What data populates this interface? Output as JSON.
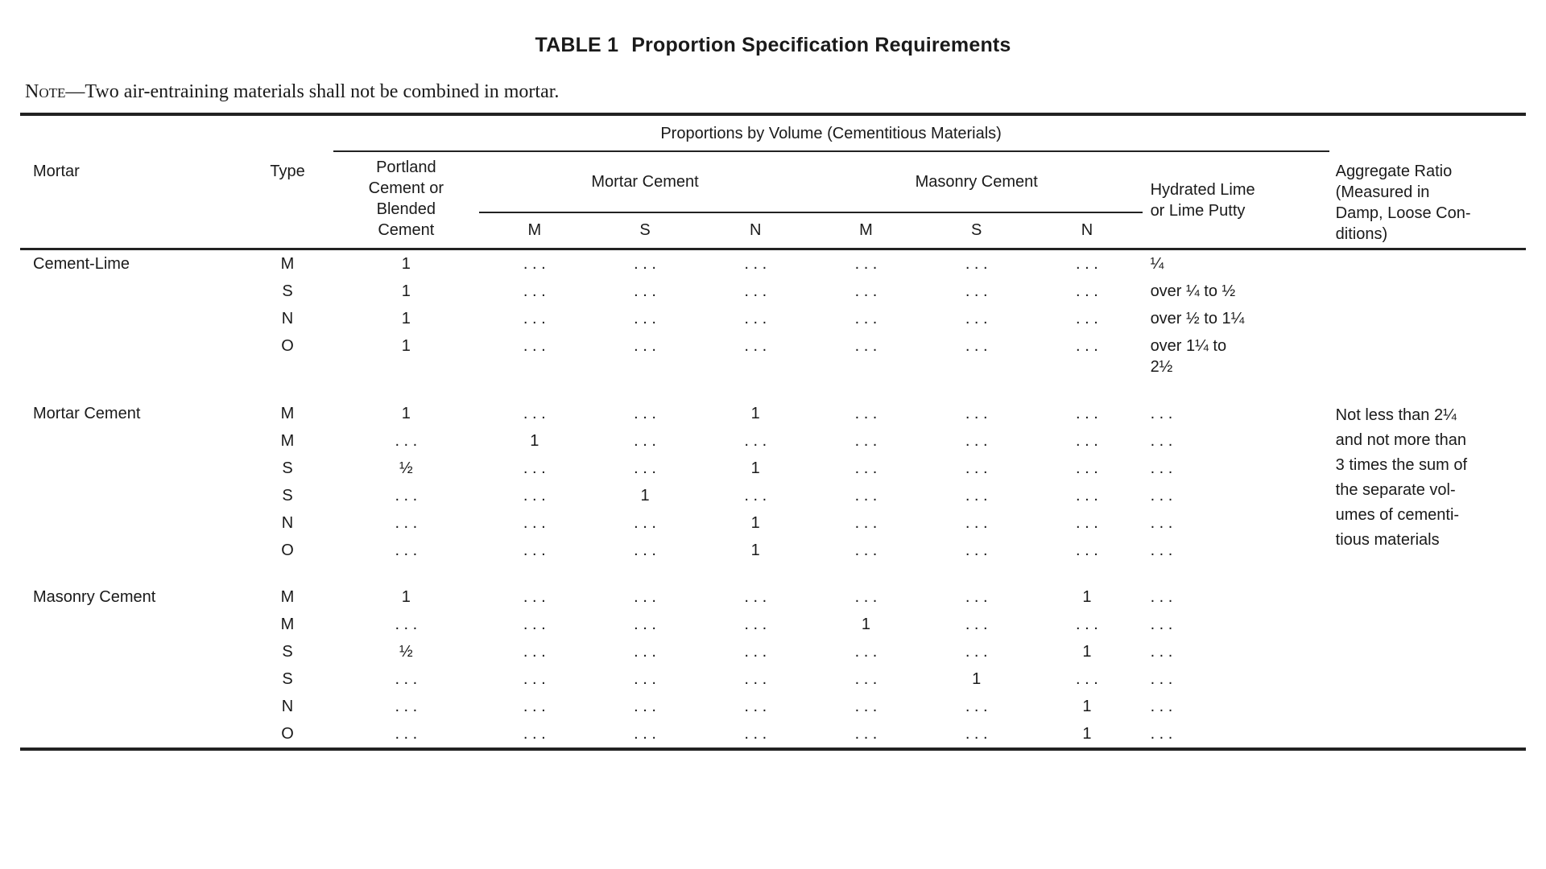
{
  "title": {
    "label": "TABLE 1",
    "text": "Proportion Specification Requirements"
  },
  "note": {
    "label": "Note",
    "text": "—Two air-entraining materials shall not be combined in mortar."
  },
  "table": {
    "headers": {
      "mortar": "Mortar",
      "type": "Type",
      "proportions_group": "Proportions by Volume (Cementitious Materials)",
      "portland": "Portland\nCement or\nBlended\nCement",
      "mortar_cement": "Mortar Cement",
      "masonry_cement": "Masonry Cement",
      "hydrated_lime": "Hydrated Lime\nor Lime Putty",
      "aggregate_ratio": "Aggregate Ratio\n(Measured in\nDamp, Loose Con-\nditions)"
    },
    "subcols": [
      "M",
      "S",
      "N",
      "M",
      "S",
      "N"
    ],
    "placeholder": ". . .",
    "body": [
      {
        "group_label": "Cement-Lime",
        "aggregate": "",
        "rows": [
          {
            "type": "M",
            "portland": "1",
            "mc": [
              ". . .",
              ". . .",
              ". . ."
            ],
            "msc": [
              ". . .",
              ". . .",
              ". . ."
            ],
            "lime": "¼"
          },
          {
            "type": "S",
            "portland": "1",
            "mc": [
              ". . .",
              ". . .",
              ". . ."
            ],
            "msc": [
              ". . .",
              ". . .",
              ". . ."
            ],
            "lime": "over ¼ to ½"
          },
          {
            "type": "N",
            "portland": "1",
            "mc": [
              ". . .",
              ". . .",
              ". . ."
            ],
            "msc": [
              ". . .",
              ". . .",
              ". . ."
            ],
            "lime": "over ½ to 1¼"
          },
          {
            "type": "O",
            "portland": "1",
            "mc": [
              ". . .",
              ". . .",
              ". . ."
            ],
            "msc": [
              ". . .",
              ". . .",
              ". . ."
            ],
            "lime": "over 1¼ to\n2½"
          }
        ]
      },
      {
        "group_label": "Mortar Cement",
        "aggregate": "Not less than 2¼\nand not more than\n3 times the sum of\nthe separate vol-\numes of cementi-\ntious materials",
        "rows": [
          {
            "type": "M",
            "portland": "1",
            "mc": [
              ". . .",
              ". . .",
              "1"
            ],
            "msc": [
              ". . .",
              ". . .",
              ". . ."
            ],
            "lime": ". . ."
          },
          {
            "type": "M",
            "portland": ". . .",
            "mc": [
              "1",
              ". . .",
              ". . ."
            ],
            "msc": [
              ". . .",
              ". . .",
              ". . ."
            ],
            "lime": ". . ."
          },
          {
            "type": "S",
            "portland": "½",
            "mc": [
              ". . .",
              ". . .",
              "1"
            ],
            "msc": [
              ". . .",
              ". . .",
              ". . ."
            ],
            "lime": ". . ."
          },
          {
            "type": "S",
            "portland": ". . .",
            "mc": [
              ". . .",
              "1",
              ". . ."
            ],
            "msc": [
              ". . .",
              ". . .",
              ". . ."
            ],
            "lime": ". . ."
          },
          {
            "type": "N",
            "portland": ". . .",
            "mc": [
              ". . .",
              ". . .",
              "1"
            ],
            "msc": [
              ". . .",
              ". . .",
              ". . ."
            ],
            "lime": ". . ."
          },
          {
            "type": "O",
            "portland": ". . .",
            "mc": [
              ". . .",
              ". . .",
              "1"
            ],
            "msc": [
              ". . .",
              ". . .",
              ". . ."
            ],
            "lime": ". . ."
          }
        ]
      },
      {
        "group_label": "Masonry Cement",
        "aggregate": "",
        "rows": [
          {
            "type": "M",
            "portland": "1",
            "mc": [
              ". . .",
              ". . .",
              ". . ."
            ],
            "msc": [
              ". . .",
              ". . .",
              "1"
            ],
            "lime": ". . ."
          },
          {
            "type": "M",
            "portland": ". . .",
            "mc": [
              ". . .",
              ". . .",
              ". . ."
            ],
            "msc": [
              "1",
              ". . .",
              ". . ."
            ],
            "lime": ". . ."
          },
          {
            "type": "S",
            "portland": "½",
            "mc": [
              ". . .",
              ". . .",
              ". . ."
            ],
            "msc": [
              ". . .",
              ". . .",
              "1"
            ],
            "lime": ". . ."
          },
          {
            "type": "S",
            "portland": ". . .",
            "mc": [
              ". . .",
              ". . .",
              ". . ."
            ],
            "msc": [
              ". . .",
              "1",
              ". . ."
            ],
            "lime": ". . ."
          },
          {
            "type": "N",
            "portland": ". . .",
            "mc": [
              ". . .",
              ". . .",
              ". . ."
            ],
            "msc": [
              ". . .",
              ". . .",
              "1"
            ],
            "lime": ". . ."
          },
          {
            "type": "O",
            "portland": ". . .",
            "mc": [
              ". . .",
              ". . .",
              ". . ."
            ],
            "msc": [
              ". . .",
              ". . .",
              "1"
            ],
            "lime": ". . ."
          }
        ]
      }
    ]
  }
}
